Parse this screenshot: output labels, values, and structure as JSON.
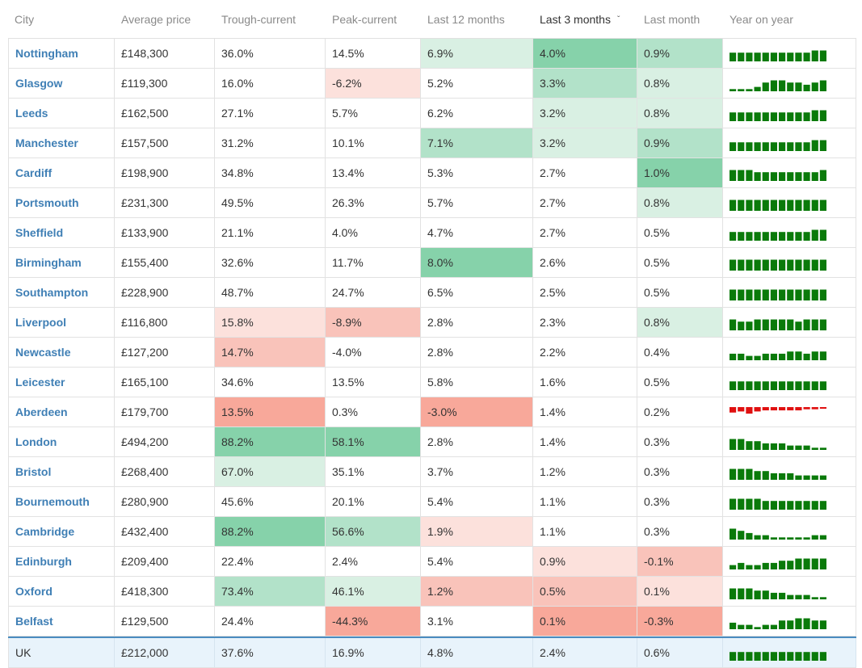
{
  "columns": [
    "City",
    "Average price",
    "Trough-current",
    "Peak-current",
    "Last 12 months",
    "Last 3 months",
    "Last month",
    "Year on year"
  ],
  "sorted_column_index": 5,
  "colors": {
    "green_strong": "#86d2aa",
    "green_mid": "#b2e2c9",
    "green_light": "#d9f0e3",
    "red_strong": "#f8a89a",
    "red_mid": "#f9c3ba",
    "red_light": "#fce1dc",
    "spark_positive": "#0a7a0a",
    "spark_negative": "#e01010"
  },
  "rows": [
    {
      "city": "Nottingham",
      "avg": "£148,300",
      "trough": "36.0%",
      "peak": "14.5%",
      "m12": "6.9%",
      "m3": "4.0%",
      "m1": "0.9%",
      "shade": [
        "",
        "",
        "green_light",
        "green_strong",
        "green_mid"
      ],
      "yoy": [
        4,
        4,
        4,
        4,
        4,
        4,
        4,
        4,
        4,
        4,
        5,
        5
      ]
    },
    {
      "city": "Glasgow",
      "avg": "£119,300",
      "trough": "16.0%",
      "peak": "-6.2%",
      "m12": "5.2%",
      "m3": "3.3%",
      "m1": "0.8%",
      "shade": [
        "",
        "red_light",
        "",
        "green_mid",
        "green_light"
      ],
      "yoy": [
        1,
        1,
        1,
        2,
        4,
        5,
        5,
        4,
        4,
        3,
        4,
        5
      ]
    },
    {
      "city": "Leeds",
      "avg": "£162,500",
      "trough": "27.1%",
      "peak": "5.7%",
      "m12": "6.2%",
      "m3": "3.2%",
      "m1": "0.8%",
      "shade": [
        "",
        "",
        "",
        "green_light",
        "green_light"
      ],
      "yoy": [
        4,
        4,
        4,
        4,
        4,
        4,
        4,
        4,
        4,
        4,
        5,
        5
      ]
    },
    {
      "city": "Manchester",
      "avg": "£157,500",
      "trough": "31.2%",
      "peak": "10.1%",
      "m12": "7.1%",
      "m3": "3.2%",
      "m1": "0.9%",
      "shade": [
        "",
        "",
        "green_mid",
        "green_light",
        "green_mid"
      ],
      "yoy": [
        4,
        4,
        4,
        4,
        4,
        4,
        4,
        4,
        4,
        4,
        5,
        5
      ]
    },
    {
      "city": "Cardiff",
      "avg": "£198,900",
      "trough": "34.8%",
      "peak": "13.4%",
      "m12": "5.3%",
      "m3": "2.7%",
      "m1": "1.0%",
      "shade": [
        "",
        "",
        "",
        "",
        "green_strong"
      ],
      "yoy": [
        5,
        5,
        5,
        4,
        4,
        4,
        4,
        4,
        4,
        4,
        4,
        5
      ]
    },
    {
      "city": "Portsmouth",
      "avg": "£231,300",
      "trough": "49.5%",
      "peak": "26.3%",
      "m12": "5.7%",
      "m3": "2.7%",
      "m1": "0.8%",
      "shade": [
        "",
        "",
        "",
        "",
        "green_light"
      ],
      "yoy": [
        5,
        5,
        5,
        5,
        5,
        5,
        5,
        5,
        5,
        5,
        5,
        5
      ]
    },
    {
      "city": "Sheffield",
      "avg": "£133,900",
      "trough": "21.1%",
      "peak": "4.0%",
      "m12": "4.7%",
      "m3": "2.7%",
      "m1": "0.5%",
      "shade": [
        "",
        "",
        "",
        "",
        ""
      ],
      "yoy": [
        4,
        4,
        4,
        4,
        4,
        4,
        4,
        4,
        4,
        4,
        5,
        5
      ]
    },
    {
      "city": "Birmingham",
      "avg": "£155,400",
      "trough": "32.6%",
      "peak": "11.7%",
      "m12": "8.0%",
      "m3": "2.6%",
      "m1": "0.5%",
      "shade": [
        "",
        "",
        "green_strong",
        "",
        ""
      ],
      "yoy": [
        5,
        5,
        5,
        5,
        5,
        5,
        5,
        5,
        5,
        5,
        5,
        5
      ]
    },
    {
      "city": "Southampton",
      "avg": "£228,900",
      "trough": "48.7%",
      "peak": "24.7%",
      "m12": "6.5%",
      "m3": "2.5%",
      "m1": "0.5%",
      "shade": [
        "",
        "",
        "",
        "",
        ""
      ],
      "yoy": [
        5,
        5,
        5,
        5,
        5,
        5,
        5,
        5,
        5,
        5,
        5,
        5
      ]
    },
    {
      "city": "Liverpool",
      "avg": "£116,800",
      "trough": "15.8%",
      "peak": "-8.9%",
      "m12": "2.8%",
      "m3": "2.3%",
      "m1": "0.8%",
      "shade": [
        "red_light",
        "red_mid",
        "",
        "",
        "green_light"
      ],
      "yoy": [
        5,
        4,
        4,
        5,
        5,
        5,
        5,
        5,
        4,
        5,
        5,
        5
      ]
    },
    {
      "city": "Newcastle",
      "avg": "£127,200",
      "trough": "14.7%",
      "peak": "-4.0%",
      "m12": "2.8%",
      "m3": "2.2%",
      "m1": "0.4%",
      "shade": [
        "red_mid",
        "",
        "",
        "",
        ""
      ],
      "yoy": [
        3,
        3,
        2,
        2,
        3,
        3,
        3,
        4,
        4,
        3,
        4,
        4
      ]
    },
    {
      "city": "Leicester",
      "avg": "£165,100",
      "trough": "34.6%",
      "peak": "13.5%",
      "m12": "5.8%",
      "m3": "1.6%",
      "m1": "0.5%",
      "shade": [
        "",
        "",
        "",
        "",
        ""
      ],
      "yoy": [
        4,
        4,
        4,
        4,
        4,
        4,
        4,
        4,
        4,
        4,
        4,
        4
      ]
    },
    {
      "city": "Aberdeen",
      "avg": "£179,700",
      "trough": "13.5%",
      "peak": "0.3%",
      "m12": "-3.0%",
      "m3": "1.4%",
      "m1": "0.2%",
      "shade": [
        "red_strong",
        "",
        "red_strong",
        "",
        ""
      ],
      "yoy": [
        -5,
        -4,
        -6,
        -4,
        -3,
        -3,
        -3,
        -3,
        -3,
        -2,
        -2,
        -1
      ]
    },
    {
      "city": "London",
      "avg": "£494,200",
      "trough": "88.2%",
      "peak": "58.1%",
      "m12": "2.8%",
      "m3": "1.4%",
      "m1": "0.3%",
      "shade": [
        "green_strong",
        "green_strong",
        "",
        "",
        ""
      ],
      "yoy": [
        5,
        5,
        4,
        4,
        3,
        3,
        3,
        2,
        2,
        2,
        1,
        1
      ]
    },
    {
      "city": "Bristol",
      "avg": "£268,400",
      "trough": "67.0%",
      "peak": "35.1%",
      "m12": "3.7%",
      "m3": "1.2%",
      "m1": "0.3%",
      "shade": [
        "green_light",
        "",
        "",
        "",
        ""
      ],
      "yoy": [
        5,
        5,
        5,
        4,
        4,
        3,
        3,
        3,
        2,
        2,
        2,
        2
      ]
    },
    {
      "city": "Bournemouth",
      "avg": "£280,900",
      "trough": "45.6%",
      "peak": "20.1%",
      "m12": "5.4%",
      "m3": "1.1%",
      "m1": "0.3%",
      "shade": [
        "",
        "",
        "",
        "",
        ""
      ],
      "yoy": [
        5,
        5,
        5,
        5,
        4,
        4,
        4,
        4,
        4,
        4,
        4,
        4
      ]
    },
    {
      "city": "Cambridge",
      "avg": "£432,400",
      "trough": "88.2%",
      "peak": "56.6%",
      "m12": "1.9%",
      "m3": "1.1%",
      "m1": "0.3%",
      "shade": [
        "green_strong",
        "green_mid",
        "red_light",
        "",
        ""
      ],
      "yoy": [
        5,
        4,
        3,
        2,
        2,
        1,
        1,
        1,
        1,
        1,
        2,
        2
      ]
    },
    {
      "city": "Edinburgh",
      "avg": "£209,400",
      "trough": "22.4%",
      "peak": "2.4%",
      "m12": "5.4%",
      "m3": "0.9%",
      "m1": "-0.1%",
      "shade": [
        "",
        "",
        "",
        "red_light",
        "red_mid"
      ],
      "yoy": [
        2,
        3,
        2,
        2,
        3,
        3,
        4,
        4,
        5,
        5,
        5,
        5
      ]
    },
    {
      "city": "Oxford",
      "avg": "£418,300",
      "trough": "73.4%",
      "peak": "46.1%",
      "m12": "1.2%",
      "m3": "0.5%",
      "m1": "0.1%",
      "shade": [
        "green_mid",
        "green_light",
        "red_mid",
        "red_mid",
        "red_light"
      ],
      "yoy": [
        5,
        5,
        5,
        4,
        4,
        3,
        3,
        2,
        2,
        2,
        1,
        1
      ]
    },
    {
      "city": "Belfast",
      "avg": "£129,500",
      "trough": "24.4%",
      "peak": "-44.3%",
      "m12": "3.1%",
      "m3": "0.1%",
      "m1": "-0.3%",
      "shade": [
        "",
        "red_strong",
        "",
        "red_strong",
        "red_strong"
      ],
      "yoy": [
        3,
        2,
        2,
        1,
        2,
        2,
        4,
        4,
        5,
        5,
        4,
        4
      ]
    }
  ],
  "uk": {
    "city": "UK",
    "avg": "£212,000",
    "trough": "37.6%",
    "peak": "16.9%",
    "m12": "4.8%",
    "m3": "2.4%",
    "m1": "0.6%",
    "yoy": [
      4,
      4,
      4,
      4,
      4,
      4,
      4,
      4,
      4,
      4,
      4,
      4
    ]
  }
}
